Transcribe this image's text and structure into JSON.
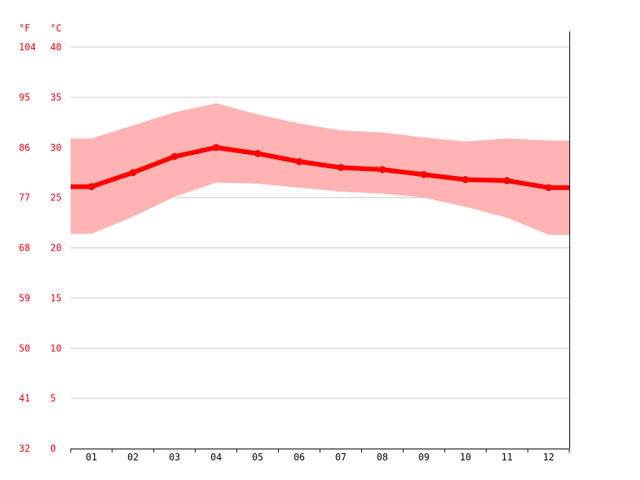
{
  "chart_data": {
    "type": "line",
    "unit_labels": {
      "fahrenheit": "°F",
      "celsius": "°C"
    },
    "categories": [
      "01",
      "02",
      "03",
      "04",
      "05",
      "06",
      "07",
      "08",
      "09",
      "10",
      "11",
      "12"
    ],
    "celsius_ticks": [
      "0",
      "5",
      "10",
      "15",
      "20",
      "25",
      "30",
      "35",
      "40"
    ],
    "fahrenheit_ticks": [
      "32",
      "41",
      "50",
      "59",
      "68",
      "77",
      "86",
      "95",
      "104"
    ],
    "ylim": [
      0,
      40
    ],
    "grid": true,
    "series": [
      {
        "values": [
          26.1,
          27.5,
          29.1,
          30.0,
          29.4,
          28.6,
          28.0,
          27.8,
          27.3,
          26.8,
          26.7,
          26.0
        ]
      }
    ],
    "range_band": {
      "max": [
        30.9,
        32.2,
        33.5,
        34.4,
        33.3,
        32.4,
        31.7,
        31.5,
        31.0,
        30.6,
        30.9,
        30.7
      ],
      "min": [
        21.4,
        23.1,
        25.1,
        26.5,
        26.4,
        26.0,
        25.6,
        25.4,
        25.0,
        24.1,
        23.0,
        21.3
      ]
    },
    "colors": {
      "line": "#ff0000",
      "band": "#ffb3b3",
      "tick_label": "#e8001c",
      "grid": "#cccccc",
      "axis": "#000000"
    }
  }
}
